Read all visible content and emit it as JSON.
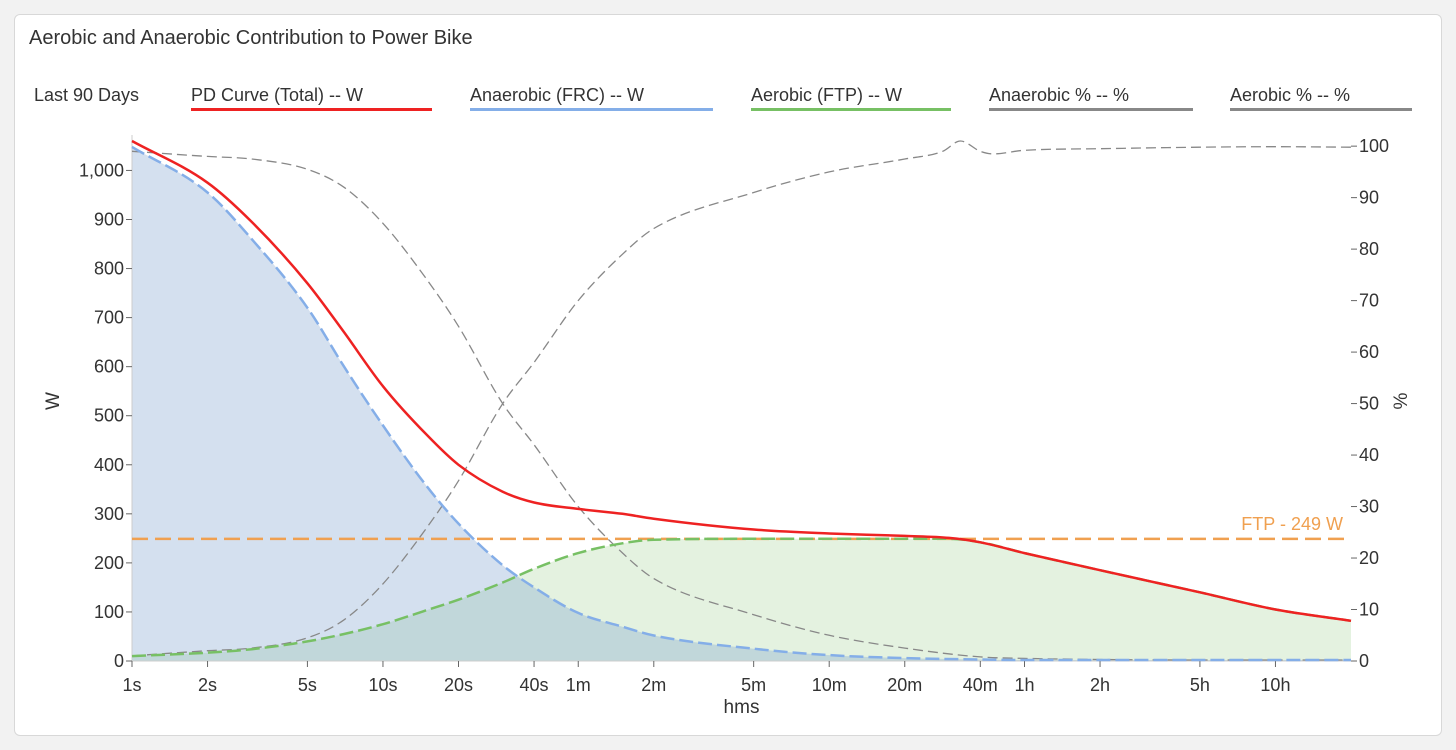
{
  "panel": {
    "title": "Aerobic and Anaerobic Contribution to Power Bike"
  },
  "legend": {
    "range": "Last 90 Days",
    "items": [
      {
        "label": "PD Curve (Total)  -- W",
        "color": "#ee2222"
      },
      {
        "label": "Anaerobic (FRC)  -- W",
        "color": "#84aee8"
      },
      {
        "label": "Aerobic (FTP)  -- W",
        "color": "#77c064"
      },
      {
        "label": "Anaerobic %  -- %",
        "color": "#888888"
      },
      {
        "label": "Aerobic %  -- %",
        "color": "#888888"
      }
    ]
  },
  "chart_data": {
    "type": "line",
    "xscale": "log-seconds",
    "xlabel": "hms",
    "ylabel": "W",
    "y2label": "%",
    "x_ticks": [
      {
        "label": "1s",
        "sec": 1
      },
      {
        "label": "2s",
        "sec": 2
      },
      {
        "label": "5s",
        "sec": 5
      },
      {
        "label": "10s",
        "sec": 10
      },
      {
        "label": "20s",
        "sec": 20
      },
      {
        "label": "40s",
        "sec": 40
      },
      {
        "label": "1m",
        "sec": 60
      },
      {
        "label": "2m",
        "sec": 120
      },
      {
        "label": "5m",
        "sec": 300
      },
      {
        "label": "10m",
        "sec": 600
      },
      {
        "label": "20m",
        "sec": 1200
      },
      {
        "label": "40m",
        "sec": 2400
      },
      {
        "label": "1h",
        "sec": 3600
      },
      {
        "label": "2h",
        "sec": 7200
      },
      {
        "label": "5h",
        "sec": 18000
      },
      {
        "label": "10h",
        "sec": 36000
      }
    ],
    "xlim": [
      1,
      72000
    ],
    "ylim": [
      0,
      1060
    ],
    "y_ticks": [
      {
        "value": 0,
        "label": "0"
      },
      {
        "value": 100,
        "label": "100"
      },
      {
        "value": 200,
        "label": "200"
      },
      {
        "value": 300,
        "label": "300"
      },
      {
        "value": 400,
        "label": "400"
      },
      {
        "value": 500,
        "label": "500"
      },
      {
        "value": 600,
        "label": "600"
      },
      {
        "value": 700,
        "label": "700"
      },
      {
        "value": 800,
        "label": "800"
      },
      {
        "value": 900,
        "label": "900"
      },
      {
        "value": 1000,
        "label": "1,000"
      }
    ],
    "y2lim": [
      0,
      101
    ],
    "y2_ticks": [
      {
        "value": 0,
        "label": "0"
      },
      {
        "value": 10,
        "label": "10"
      },
      {
        "value": 20,
        "label": "20"
      },
      {
        "value": 30,
        "label": "30"
      },
      {
        "value": 40,
        "label": "40"
      },
      {
        "value": 50,
        "label": "50"
      },
      {
        "value": 60,
        "label": "60"
      },
      {
        "value": 70,
        "label": "70"
      },
      {
        "value": 80,
        "label": "80"
      },
      {
        "value": 90,
        "label": "90"
      },
      {
        "value": 100,
        "label": "100"
      }
    ],
    "ftp": {
      "value": 249,
      "label": "FTP - 249 W"
    },
    "series": [
      {
        "name": "PD Curve (Total)",
        "axis": "W",
        "color": "#ee2222",
        "points": [
          [
            1,
            1060
          ],
          [
            2,
            975
          ],
          [
            3,
            895
          ],
          [
            5,
            770
          ],
          [
            7,
            670
          ],
          [
            10,
            560
          ],
          [
            15,
            460
          ],
          [
            20,
            400
          ],
          [
            30,
            345
          ],
          [
            40,
            323
          ],
          [
            60,
            310
          ],
          [
            90,
            300
          ],
          [
            120,
            290
          ],
          [
            300,
            268
          ],
          [
            600,
            260
          ],
          [
            1200,
            255
          ],
          [
            1800,
            251
          ],
          [
            2400,
            242
          ],
          [
            3600,
            220
          ],
          [
            7200,
            185
          ],
          [
            18000,
            140
          ],
          [
            36000,
            105
          ],
          [
            72000,
            82
          ]
        ]
      },
      {
        "name": "Anaerobic (FRC)",
        "axis": "W",
        "color": "#84aee8",
        "points": [
          [
            1,
            1048
          ],
          [
            2,
            955
          ],
          [
            3,
            860
          ],
          [
            5,
            720
          ],
          [
            7,
            600
          ],
          [
            10,
            480
          ],
          [
            15,
            355
          ],
          [
            20,
            280
          ],
          [
            30,
            195
          ],
          [
            40,
            150
          ],
          [
            60,
            98
          ],
          [
            90,
            70
          ],
          [
            120,
            52
          ],
          [
            300,
            25
          ],
          [
            600,
            12
          ],
          [
            1200,
            6
          ],
          [
            2400,
            3
          ],
          [
            3600,
            2
          ],
          [
            7200,
            2
          ],
          [
            18000,
            2
          ],
          [
            36000,
            2
          ],
          [
            72000,
            2
          ]
        ]
      },
      {
        "name": "Aerobic (FTP)",
        "axis": "W",
        "color": "#77c064",
        "points": [
          [
            1,
            10
          ],
          [
            2,
            17
          ],
          [
            3,
            24
          ],
          [
            5,
            40
          ],
          [
            7,
            55
          ],
          [
            10,
            75
          ],
          [
            15,
            104
          ],
          [
            20,
            125
          ],
          [
            30,
            160
          ],
          [
            40,
            188
          ],
          [
            60,
            220
          ],
          [
            90,
            240
          ],
          [
            120,
            247
          ],
          [
            300,
            249
          ],
          [
            600,
            249
          ],
          [
            1200,
            249
          ],
          [
            1800,
            249
          ],
          [
            2400,
            242
          ],
          [
            3600,
            220
          ],
          [
            7200,
            185
          ],
          [
            18000,
            140
          ],
          [
            36000,
            105
          ],
          [
            72000,
            82
          ]
        ]
      },
      {
        "name": "Anaerobic %",
        "axis": "%",
        "color": "#888888",
        "points": [
          [
            1,
            99
          ],
          [
            2,
            98
          ],
          [
            3,
            97.5
          ],
          [
            5,
            95.5
          ],
          [
            7,
            92
          ],
          [
            10,
            85
          ],
          [
            15,
            74
          ],
          [
            20,
            65
          ],
          [
            30,
            50
          ],
          [
            40,
            42
          ],
          [
            60,
            30
          ],
          [
            90,
            21
          ],
          [
            120,
            16
          ],
          [
            300,
            9
          ],
          [
            600,
            5
          ],
          [
            1200,
            2.5
          ],
          [
            2400,
            0.8
          ],
          [
            3600,
            0.5
          ],
          [
            7200,
            0.3
          ],
          [
            18000,
            0.2
          ],
          [
            72000,
            0.2
          ]
        ]
      },
      {
        "name": "Aerobic %",
        "axis": "%",
        "color": "#888888",
        "points": [
          [
            1,
            1
          ],
          [
            2,
            2
          ],
          [
            3,
            2.5
          ],
          [
            5,
            4.5
          ],
          [
            7,
            8
          ],
          [
            10,
            15
          ],
          [
            15,
            26
          ],
          [
            20,
            35
          ],
          [
            30,
            50
          ],
          [
            40,
            58
          ],
          [
            60,
            70
          ],
          [
            90,
            79
          ],
          [
            120,
            84
          ],
          [
            300,
            91
          ],
          [
            600,
            95
          ],
          [
            1200,
            97.5
          ],
          [
            1700,
            99
          ],
          [
            2000,
            101
          ],
          [
            2400,
            99
          ],
          [
            2700,
            98.5
          ],
          [
            3600,
            99.2
          ],
          [
            7200,
            99.5
          ],
          [
            18000,
            99.8
          ],
          [
            36000,
            99.9
          ],
          [
            72000,
            99.8
          ]
        ]
      }
    ]
  }
}
